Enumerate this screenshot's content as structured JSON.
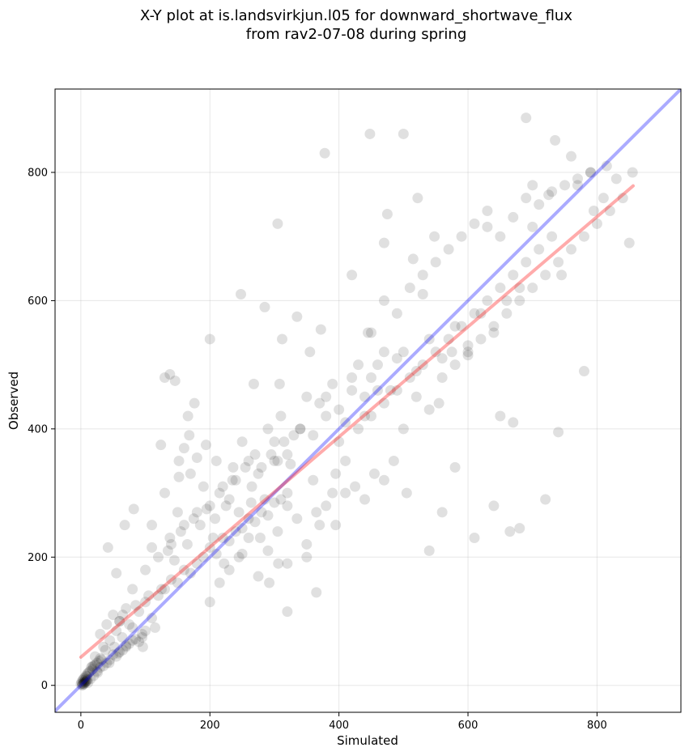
{
  "chart_data": {
    "type": "scatter",
    "title_line1": "X-Y plot at is.landsvirkjun.l05 for downward_shortwave_flux",
    "title_line2": "from rav2-07-08 during spring",
    "xlabel": "Simulated",
    "ylabel": "Observed",
    "xlim": [
      -40,
      930
    ],
    "ylim": [
      -42,
      930
    ],
    "xticks": [
      0,
      200,
      400,
      600,
      800
    ],
    "yticks": [
      0,
      200,
      400,
      600,
      800
    ],
    "grid": true,
    "point_color": "#000000",
    "point_alpha": 0.12,
    "one_to_one_line": {
      "color": "#0000ff",
      "alpha": 0.33,
      "x": [
        -40,
        930
      ],
      "y": [
        -40,
        930
      ]
    },
    "fit_line": {
      "color": "#ff0000",
      "alpha": 0.33,
      "x": [
        0,
        856
      ],
      "y": [
        44,
        779
      ]
    },
    "x": [
      0,
      1,
      2,
      3,
      4,
      5,
      6,
      7,
      8,
      9,
      10,
      12,
      14,
      16,
      18,
      20,
      22,
      25,
      28,
      30,
      2,
      4,
      6,
      8,
      10,
      3,
      5,
      7,
      9,
      11,
      15,
      20,
      25,
      30,
      35,
      40,
      45,
      50,
      55,
      60,
      65,
      70,
      75,
      80,
      85,
      90,
      95,
      100,
      18,
      22,
      26,
      32,
      38,
      44,
      52,
      58,
      64,
      70,
      30,
      40,
      50,
      60,
      70,
      80,
      90,
      100,
      110,
      120,
      35,
      45,
      55,
      65,
      75,
      85,
      95,
      105,
      115,
      125,
      130,
      140,
      150,
      160,
      170,
      180,
      190,
      200,
      210,
      220,
      230,
      240,
      250,
      260,
      270,
      280,
      290,
      300,
      310,
      320,
      135,
      145,
      155,
      165,
      175,
      185,
      195,
      205,
      215,
      225,
      235,
      245,
      255,
      265,
      275,
      285,
      295,
      305,
      315,
      325,
      60,
      80,
      100,
      120,
      140,
      160,
      180,
      200,
      220,
      240,
      260,
      280,
      300,
      320,
      340,
      360,
      380,
      400,
      420,
      440,
      110,
      130,
      150,
      170,
      190,
      210,
      230,
      250,
      270,
      290,
      310,
      330,
      350,
      370,
      390,
      410,
      430,
      450,
      470,
      490,
      200,
      215,
      230,
      245,
      260,
      275,
      290,
      305,
      320,
      335,
      350,
      365,
      380,
      395,
      410,
      425,
      440,
      455,
      470,
      485,
      300,
      320,
      340,
      360,
      380,
      400,
      420,
      440,
      460,
      480,
      500,
      520,
      540,
      560,
      580,
      600,
      620,
      640,
      660,
      680,
      350,
      370,
      390,
      410,
      430,
      450,
      470,
      490,
      510,
      530,
      550,
      570,
      590,
      610,
      630,
      650,
      670,
      690,
      710,
      730,
      450,
      470,
      490,
      510,
      530,
      550,
      570,
      590,
      610,
      630,
      650,
      670,
      690,
      710,
      730,
      750,
      770,
      790,
      810,
      830,
      500,
      520,
      540,
      560,
      580,
      600,
      620,
      640,
      660,
      680,
      700,
      720,
      740,
      760,
      780,
      800,
      820,
      840,
      855,
      700,
      130,
      138,
      146,
      152,
      160,
      168,
      176,
      305,
      308,
      312,
      378,
      448,
      500,
      522,
      548,
      690,
      735,
      760,
      790,
      850,
      200,
      248,
      268,
      285,
      335,
      355,
      372,
      460,
      475,
      530,
      540,
      560,
      580,
      610,
      640,
      665,
      680,
      720,
      740,
      780,
      320,
      365,
      395,
      420,
      445,
      470,
      505,
      515,
      555,
      575,
      600,
      630,
      650,
      670,
      700,
      725,
      745,
      770,
      795,
      815,
      42,
      55,
      68,
      82,
      96,
      110,
      124,
      138,
      152,
      166,
      180,
      194,
      208,
      222,
      236,
      250,
      264,
      278,
      292,
      306
    ],
    "y": [
      2,
      5,
      3,
      8,
      10,
      6,
      12,
      9,
      15,
      14,
      18,
      20,
      22,
      28,
      25,
      30,
      32,
      35,
      38,
      42,
      0,
      3,
      4,
      6,
      9,
      1,
      2,
      5,
      7,
      4,
      10,
      15,
      22,
      28,
      30,
      35,
      40,
      48,
      45,
      52,
      55,
      60,
      65,
      70,
      72,
      68,
      80,
      85,
      30,
      45,
      20,
      40,
      55,
      35,
      60,
      50,
      75,
      62,
      80,
      95,
      110,
      100,
      120,
      90,
      115,
      130,
      105,
      140,
      60,
      70,
      85,
      110,
      95,
      125,
      75,
      140,
      90,
      150,
      150,
      165,
      160,
      180,
      175,
      190,
      200,
      215,
      205,
      230,
      225,
      240,
      245,
      260,
      255,
      270,
      265,
      285,
      290,
      300,
      210,
      195,
      240,
      220,
      260,
      250,
      275,
      230,
      300,
      280,
      320,
      270,
      340,
      310,
      330,
      290,
      360,
      350,
      380,
      345,
      100,
      150,
      180,
      200,
      220,
      250,
      270,
      280,
      310,
      320,
      350,
      340,
      380,
      360,
      400,
      390,
      420,
      430,
      460,
      450,
      250,
      300,
      270,
      330,
      310,
      350,
      290,
      380,
      360,
      400,
      420,
      390,
      450,
      440,
      470,
      410,
      500,
      480,
      520,
      510,
      130,
      160,
      180,
      200,
      230,
      170,
      210,
      240,
      190,
      260,
      220,
      270,
      280,
      250,
      300,
      310,
      290,
      330,
      320,
      350,
      350,
      280,
      400,
      320,
      450,
      380,
      480,
      420,
      500,
      460,
      520,
      490,
      540,
      510,
      560,
      530,
      580,
      550,
      600,
      620,
      200,
      250,
      300,
      350,
      400,
      420,
      440,
      460,
      480,
      500,
      520,
      540,
      560,
      580,
      600,
      620,
      640,
      660,
      680,
      700,
      550,
      600,
      580,
      620,
      640,
      660,
      680,
      700,
      720,
      740,
      700,
      730,
      760,
      750,
      770,
      780,
      790,
      800,
      760,
      790,
      400,
      450,
      430,
      480,
      500,
      520,
      540,
      560,
      580,
      600,
      620,
      640,
      660,
      680,
      700,
      720,
      740,
      760,
      800,
      780,
      480,
      485,
      475,
      350,
      370,
      390,
      440,
      720,
      470,
      540,
      830,
      860,
      860,
      760,
      700,
      885,
      850,
      825,
      800,
      690,
      540,
      610,
      470,
      590,
      575,
      520,
      555,
      460,
      735,
      610,
      210,
      270,
      340,
      230,
      280,
      240,
      245,
      290,
      395,
      490,
      115,
      145,
      330,
      640,
      550,
      690,
      300,
      665,
      440,
      520,
      515,
      715,
      420,
      410,
      715,
      765,
      640,
      780,
      740,
      810,
      215,
      175,
      250,
      275,
      60,
      215,
      375,
      230,
      325,
      420,
      355,
      375,
      260,
      190,
      340,
      205,
      285,
      230,
      160,
      190
    ]
  }
}
